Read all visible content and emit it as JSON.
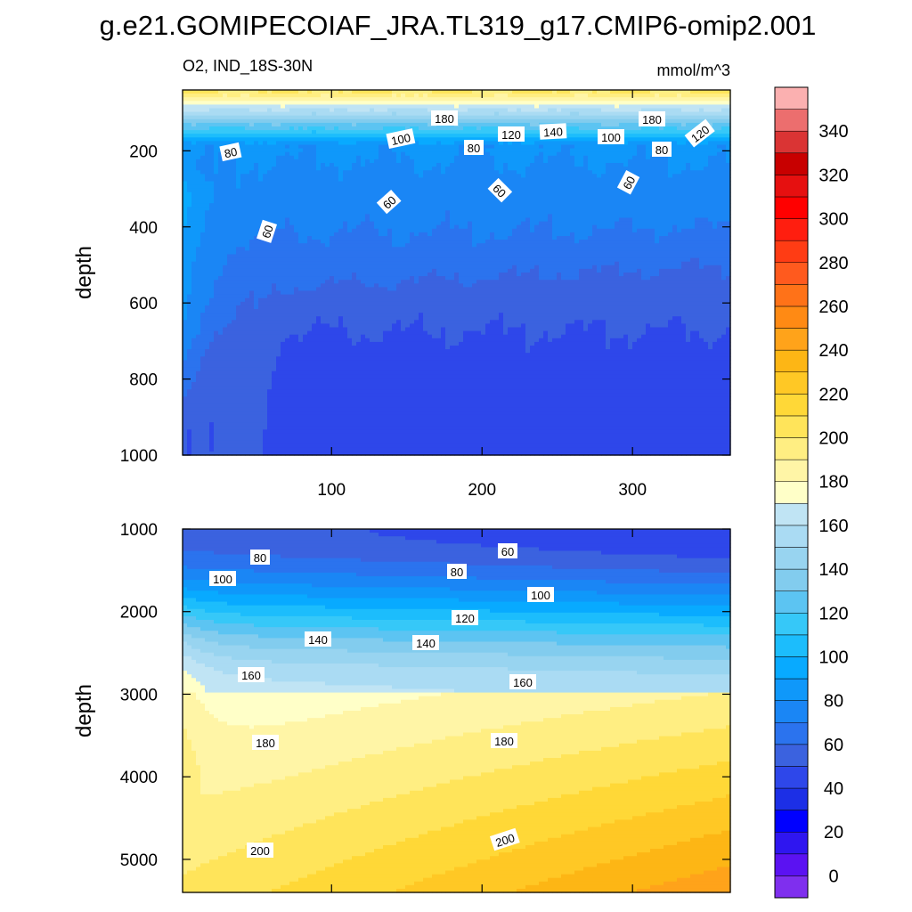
{
  "title": "g.e21.GOMIPECOIAF_JRA.TL319_g17.CMIP6-omip2.001",
  "variable_region": "O2, IND_18S-30N",
  "units": "mmol/m^3",
  "colorbar": {
    "levels": [
      -10,
      0,
      10,
      20,
      30,
      40,
      50,
      60,
      70,
      80,
      90,
      100,
      110,
      120,
      130,
      140,
      150,
      160,
      170,
      180,
      190,
      200,
      210,
      220,
      230,
      240,
      250,
      260,
      270,
      280,
      290,
      300,
      310,
      320,
      330,
      340,
      350,
      360
    ],
    "colors": [
      "#7f2fee",
      "#5b12f2",
      "#2f16f0",
      "#0000ff",
      "#1c2fe6",
      "#2e47ea",
      "#3b62df",
      "#2b73ee",
      "#1a86f5",
      "#0f98fa",
      "#08aaff",
      "#1cbdfc",
      "#36c8f8",
      "#5cc4f2",
      "#82ccee",
      "#98d4f0",
      "#aadbf3",
      "#c0e4f4",
      "#ffffc8",
      "#fff5a6",
      "#ffee82",
      "#ffe45a",
      "#ffd837",
      "#ffc825",
      "#fdb615",
      "#ffa31a",
      "#ff8a14",
      "#ff7218",
      "#ff5a1e",
      "#ff3c14",
      "#ff1e0f",
      "#ff0000",
      "#e61010",
      "#c80000",
      "#da3434",
      "#ec6e6e",
      "#fbb0b0"
    ],
    "tick_labels": [
      "0",
      "20",
      "40",
      "60",
      "80",
      "100",
      "120",
      "140",
      "160",
      "180",
      "200",
      "220",
      "240",
      "260",
      "280",
      "300",
      "320",
      "340"
    ]
  },
  "chart_data": [
    {
      "type": "heatmap",
      "panel": "upper",
      "xlabel": "",
      "ylabel": "depth",
      "xlim": [
        1,
        365
      ],
      "ylim": [
        1000,
        0
      ],
      "x_ticks": [
        "100",
        "200",
        "300"
      ],
      "y_ticks": [
        "200",
        "400",
        "600",
        "800",
        "1000"
      ],
      "contour_labels": [
        "180",
        "100",
        "120",
        "140",
        "100",
        "180",
        "120",
        "80",
        "80",
        "80",
        "60",
        "60",
        "60",
        "60"
      ],
      "grid": false
    },
    {
      "type": "heatmap",
      "panel": "lower",
      "xlabel": "",
      "ylabel": "depth",
      "xlim": [
        1,
        365
      ],
      "ylim": [
        1000,
        5400
      ],
      "x_ticks": [],
      "y_ticks": [
        "1000",
        "2000",
        "3000",
        "4000",
        "5000"
      ],
      "contour_labels": [
        "80",
        "60",
        "100",
        "80",
        "100",
        "120",
        "140",
        "140",
        "160",
        "160",
        "180",
        "180",
        "200",
        "200"
      ],
      "grid": false
    }
  ]
}
